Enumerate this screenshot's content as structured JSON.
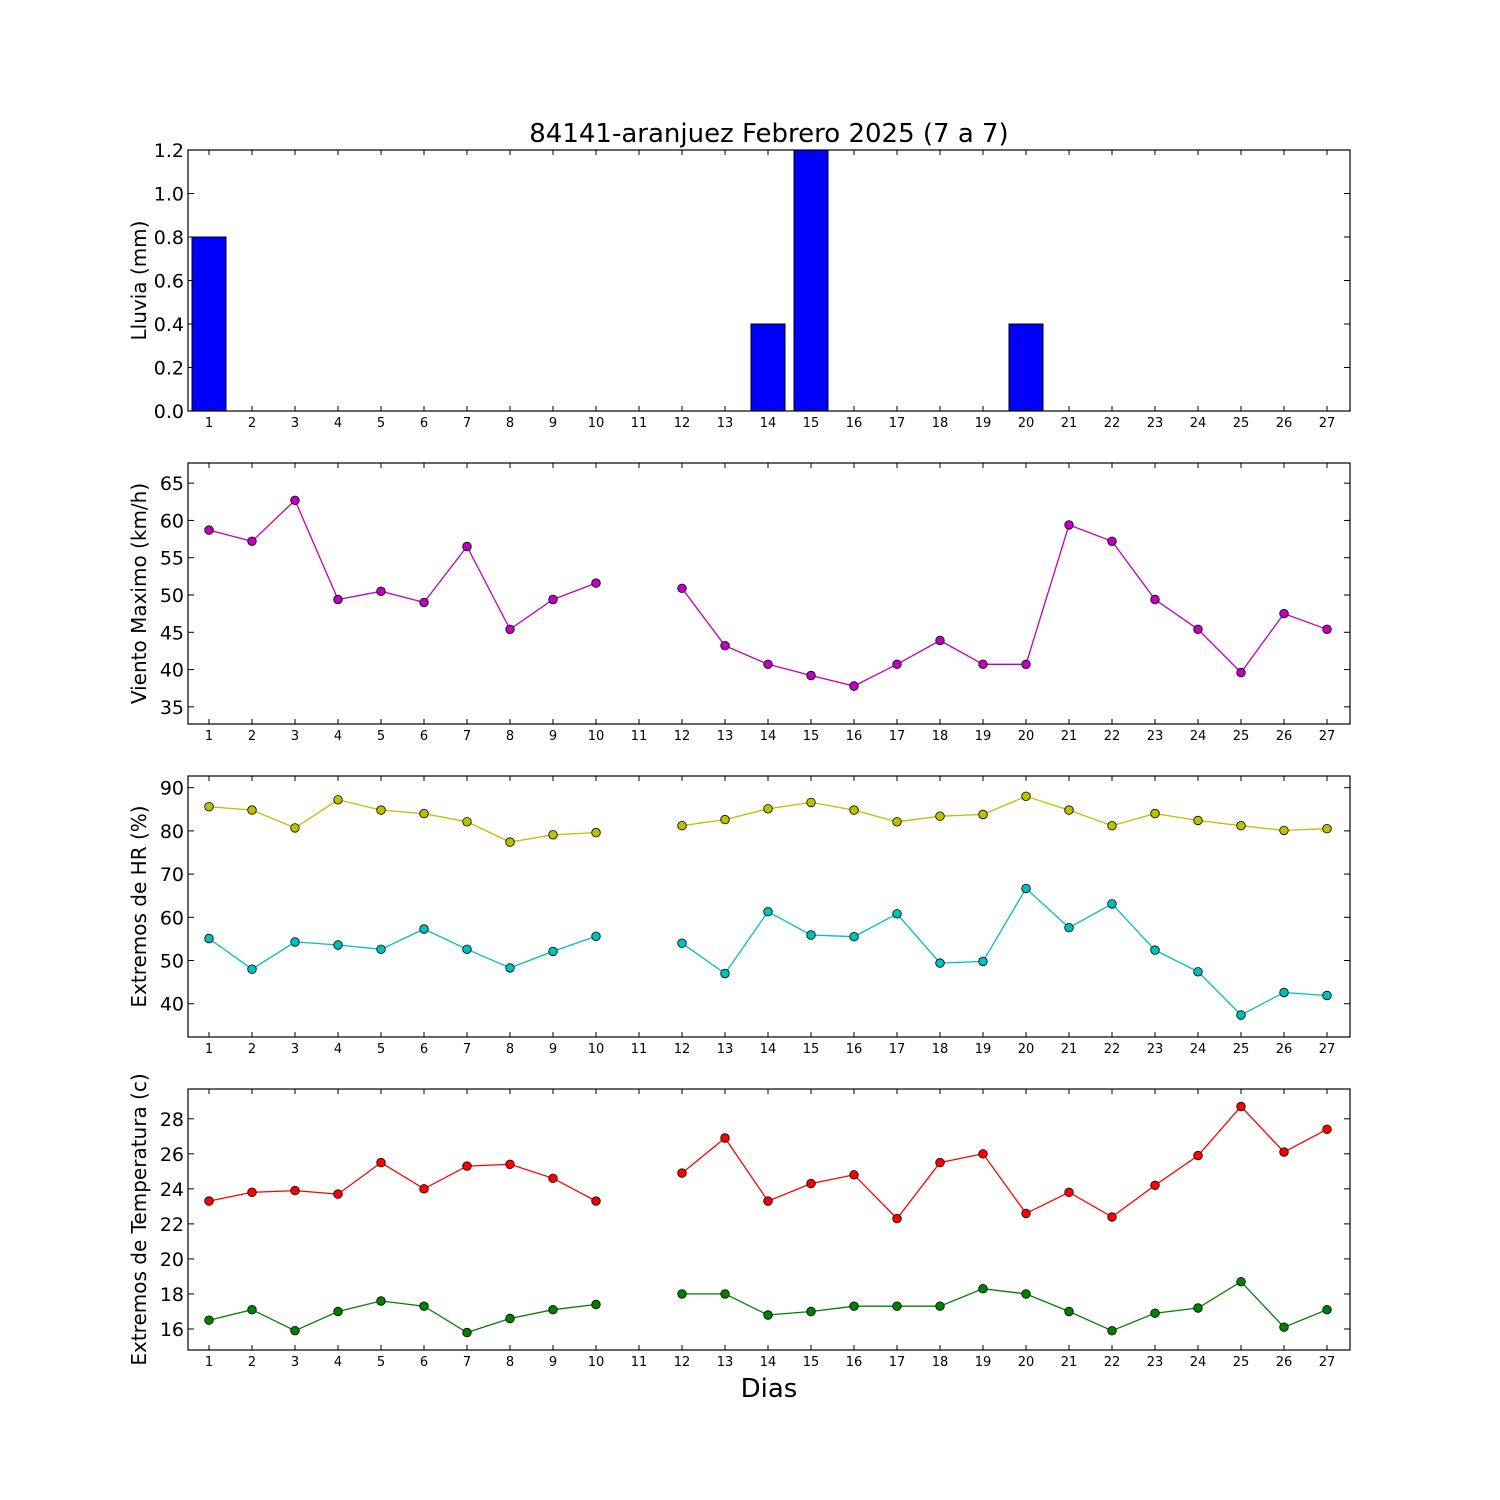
{
  "title": "84141-aranjuez Febrero 2025  (7 a 7)",
  "xlabel": "Dias",
  "chart_data": [
    {
      "type": "bar",
      "ylabel": "Lluvia (mm)",
      "x": [
        1,
        2,
        3,
        4,
        5,
        6,
        7,
        8,
        9,
        10,
        11,
        12,
        13,
        14,
        15,
        16,
        17,
        18,
        19,
        20,
        21,
        22,
        23,
        24,
        25,
        26,
        27
      ],
      "ylim": [
        0,
        1.2
      ],
      "yticks": [
        "0.0",
        "0.2",
        "0.4",
        "0.6",
        "0.8",
        "1.0",
        "1.2"
      ],
      "series": [
        {
          "color": "#0000ff",
          "values": [
            0.8,
            0,
            0,
            0,
            0,
            0,
            0,
            0,
            0,
            0,
            0,
            0,
            0,
            0.4,
            1.2,
            0,
            0,
            0,
            0,
            0.4,
            0,
            0,
            0,
            0,
            0,
            0,
            0
          ]
        }
      ]
    },
    {
      "type": "line",
      "ylabel": "Viento Maximo (km/h)",
      "x": [
        1,
        2,
        3,
        4,
        5,
        6,
        7,
        8,
        9,
        10,
        11,
        12,
        13,
        14,
        15,
        16,
        17,
        18,
        19,
        20,
        21,
        22,
        23,
        24,
        25,
        26,
        27
      ],
      "ylim": [
        32.7,
        67.7
      ],
      "yticks": [
        "35",
        "40",
        "45",
        "50",
        "55",
        "60",
        "65"
      ],
      "series": [
        {
          "color": "#bf00bf",
          "values": [
            58.7,
            57.2,
            62.7,
            49.4,
            50.5,
            49.0,
            56.5,
            45.4,
            49.4,
            51.6,
            null,
            50.9,
            43.2,
            40.7,
            39.2,
            37.8,
            40.7,
            43.9,
            40.7,
            40.7,
            59.4,
            57.2,
            49.4,
            45.4,
            39.6,
            47.5,
            45.4
          ]
        }
      ]
    },
    {
      "type": "line",
      "ylabel": "Extremos de HR (%)",
      "x": [
        1,
        2,
        3,
        4,
        5,
        6,
        7,
        8,
        9,
        10,
        11,
        12,
        13,
        14,
        15,
        16,
        17,
        18,
        19,
        20,
        21,
        22,
        23,
        24,
        25,
        26,
        27
      ],
      "ylim": [
        32.3,
        92.7
      ],
      "yticks": [
        "40",
        "50",
        "60",
        "70",
        "80",
        "90"
      ],
      "series": [
        {
          "color": "#bfbf00",
          "values": [
            85.6,
            84.8,
            80.7,
            87.2,
            84.8,
            84.0,
            82.1,
            77.4,
            79.1,
            79.6,
            null,
            81.2,
            82.6,
            85.1,
            86.6,
            84.8,
            82.1,
            83.4,
            83.8,
            88.0,
            84.8,
            81.2,
            84.0,
            82.4,
            81.2,
            80.1,
            80.5
          ]
        },
        {
          "color": "#00bfbf",
          "values": [
            55.1,
            48.0,
            54.3,
            53.6,
            52.6,
            57.3,
            52.6,
            48.3,
            52.1,
            55.6,
            null,
            54.0,
            47.0,
            61.3,
            55.9,
            55.5,
            60.8,
            49.4,
            49.8,
            66.7,
            57.6,
            63.1,
            52.4,
            47.4,
            37.4,
            42.6,
            41.9
          ]
        }
      ]
    },
    {
      "type": "line",
      "ylabel": "Extremos de Temperatura (c)",
      "x": [
        1,
        2,
        3,
        4,
        5,
        6,
        7,
        8,
        9,
        10,
        11,
        12,
        13,
        14,
        15,
        16,
        17,
        18,
        19,
        20,
        21,
        22,
        23,
        24,
        25,
        26,
        27
      ],
      "ylim": [
        14.8,
        29.7
      ],
      "yticks": [
        "16",
        "18",
        "20",
        "22",
        "24",
        "26",
        "28"
      ],
      "series": [
        {
          "color": "#ff0000",
          "values": [
            23.3,
            23.8,
            23.9,
            23.7,
            25.5,
            24.0,
            25.3,
            25.4,
            24.6,
            23.3,
            null,
            24.9,
            26.9,
            23.3,
            24.3,
            24.8,
            22.3,
            25.5,
            26.0,
            22.6,
            23.8,
            22.4,
            24.2,
            25.9,
            28.7,
            26.1,
            27.4
          ]
        },
        {
          "color": "#008000",
          "values": [
            16.5,
            17.1,
            15.9,
            17.0,
            17.6,
            17.3,
            15.8,
            16.6,
            17.1,
            17.4,
            null,
            18.0,
            18.0,
            16.8,
            17.0,
            17.3,
            17.3,
            17.3,
            18.3,
            18.0,
            17.0,
            15.9,
            16.9,
            17.2,
            18.7,
            16.1,
            17.1
          ]
        }
      ]
    }
  ]
}
